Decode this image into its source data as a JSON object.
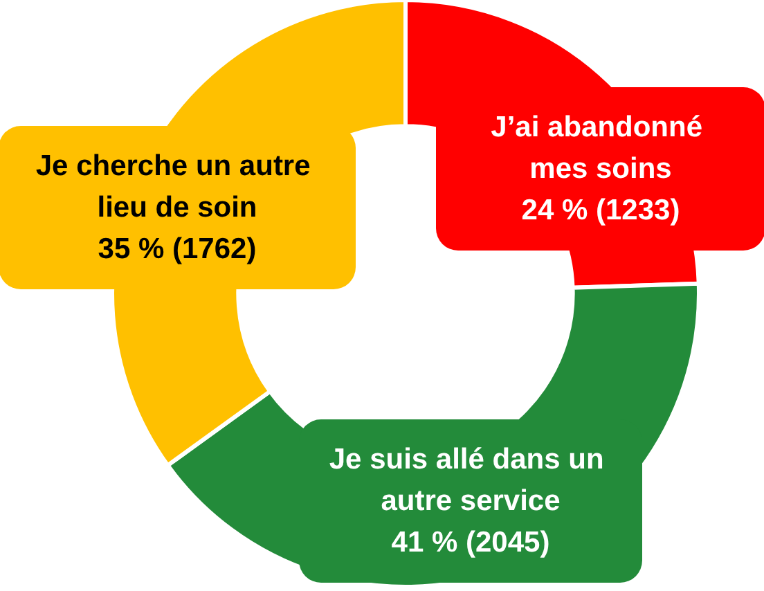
{
  "chart_data": {
    "type": "donut",
    "categories": [
      "J’ai abandonné mes soins",
      "Je suis allé dans un autre service",
      "Je cherche un autre lieu de soin"
    ],
    "values": [
      1233,
      2045,
      1762
    ],
    "value_labels": [
      "24 % (1233)",
      "41 % (2045)",
      "35 % (1762)"
    ],
    "colors": [
      "#ff0000",
      "#238b3a",
      "#ffc000"
    ],
    "legend": false
  }
}
